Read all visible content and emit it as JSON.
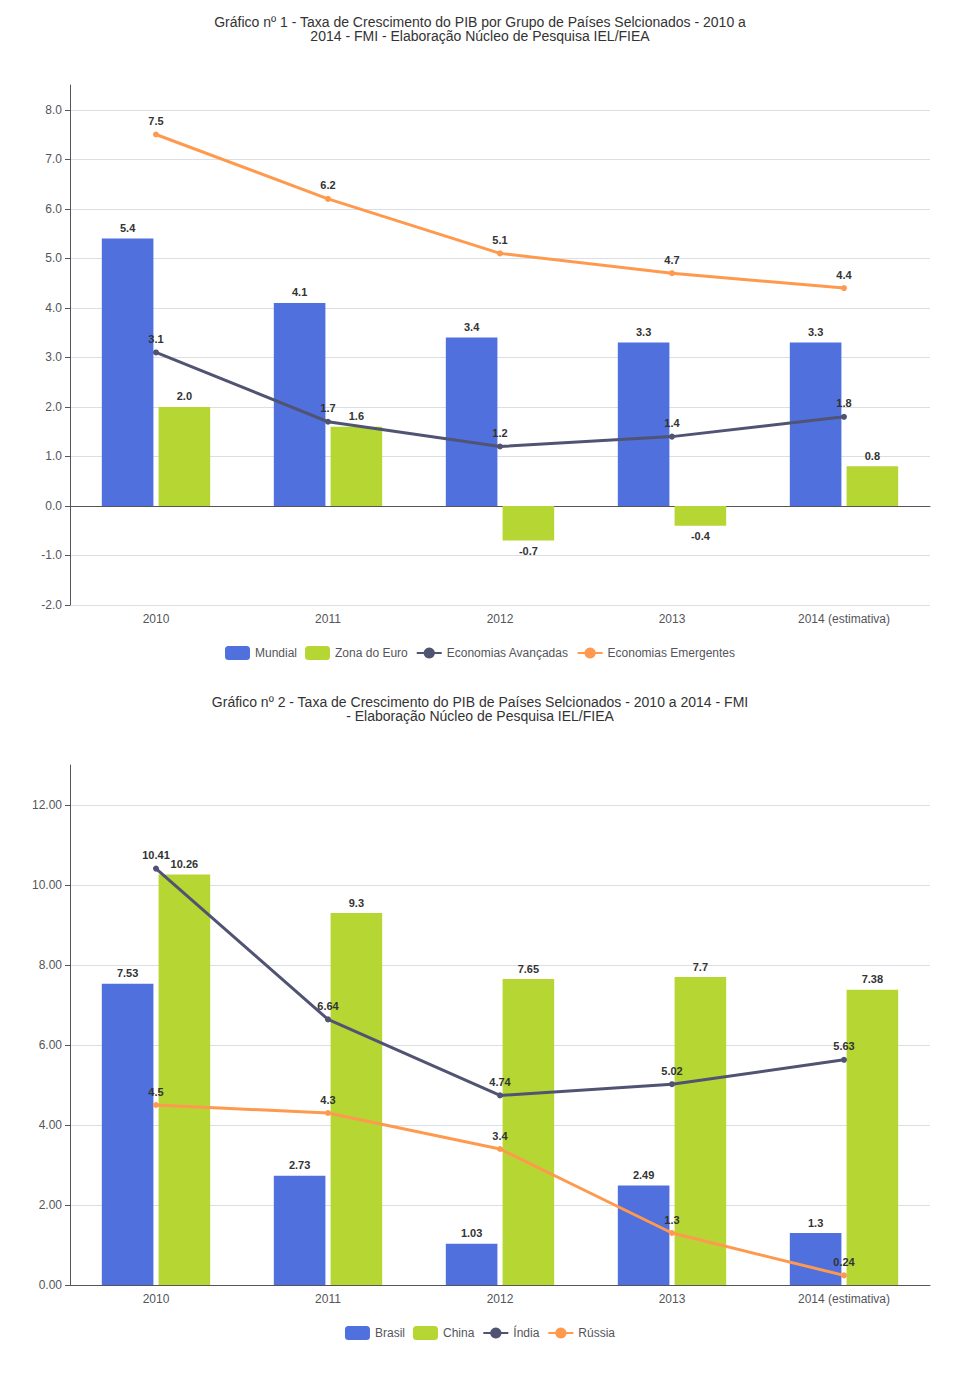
{
  "chart_data": [
    {
      "type": "bar",
      "title": "Gráfico nº 1 - Taxa de Crescimento do PIB por Grupo de Países Selcionados - 2010 a\n2014 - FMI - Elaboração Núcleo de Pesquisa IEL/FIEA",
      "categories": [
        "2010",
        "2011",
        "2012",
        "2013",
        "2014 (estimativa)"
      ],
      "series": [
        {
          "name": "Mundial",
          "type": "bar",
          "values": [
            5.4,
            4.1,
            3.4,
            3.3,
            3.3
          ]
        },
        {
          "name": "Zona do Euro",
          "type": "bar",
          "values": [
            2.0,
            1.6,
            -0.7,
            -0.4,
            0.8
          ],
          "value_labels": [
            "2.0",
            "1.6",
            "-0.7",
            "-0.4",
            "0.8"
          ]
        },
        {
          "name": "Economias Avançadas",
          "type": "line",
          "marker": "circle",
          "values": [
            3.1,
            1.7,
            1.2,
            1.4,
            1.8
          ]
        },
        {
          "name": "Economias Emergentes",
          "type": "line",
          "marker": "circle",
          "values": [
            7.5,
            6.2,
            5.1,
            4.7,
            4.4
          ]
        }
      ],
      "ylim": [
        -2.0,
        8.5
      ],
      "yticks": [
        {
          "value": -2.0,
          "label": "-2.0"
        },
        {
          "value": -1.0,
          "label": "-1.0"
        },
        {
          "value": 0.0,
          "label": "0.0"
        },
        {
          "value": 1.0,
          "label": "1.0"
        },
        {
          "value": 2.0,
          "label": "2.0"
        },
        {
          "value": 3.0,
          "label": "3.0"
        },
        {
          "value": 4.0,
          "label": "4.0"
        },
        {
          "value": 5.0,
          "label": "5.0"
        },
        {
          "value": 6.0,
          "label": "6.0"
        },
        {
          "value": 7.0,
          "label": "7.0"
        },
        {
          "value": 8.0,
          "label": "8.0"
        }
      ],
      "grid": true,
      "legend": "bottom",
      "data_labels": true
    },
    {
      "type": "bar",
      "title": "Gráfico nº 2 - Taxa de Crescimento do PIB de Países Selcionados - 2010 a 2014 - FMI\n- Elaboração Núcleo de Pesquisa IEL/FIEA",
      "categories": [
        "2010",
        "2011",
        "2012",
        "2013",
        "2014 (estimativa)"
      ],
      "series": [
        {
          "name": "Brasil",
          "type": "bar",
          "values": [
            7.53,
            2.73,
            1.03,
            2.49,
            1.3
          ]
        },
        {
          "name": "China",
          "type": "bar",
          "values": [
            10.26,
            9.3,
            7.65,
            7.7,
            7.38
          ]
        },
        {
          "name": "Índia",
          "type": "line",
          "marker": "circle",
          "values": [
            10.41,
            6.64,
            4.74,
            5.02,
            5.63
          ]
        },
        {
          "name": "Rússia",
          "type": "line",
          "marker": "circle",
          "values": [
            4.5,
            4.3,
            3.4,
            1.3,
            0.24
          ]
        }
      ],
      "ylim": [
        0,
        13
      ],
      "yticks": [
        {
          "value": 0,
          "label": "0.00"
        },
        {
          "value": 2,
          "label": "2.00"
        },
        {
          "value": 4,
          "label": "4.00"
        },
        {
          "value": 6,
          "label": "6.00"
        },
        {
          "value": 8,
          "label": "8.00"
        },
        {
          "value": 10,
          "label": "10.00"
        },
        {
          "value": 12,
          "label": "12.00"
        }
      ],
      "grid": true,
      "legend": "bottom",
      "data_labels": true
    }
  ]
}
